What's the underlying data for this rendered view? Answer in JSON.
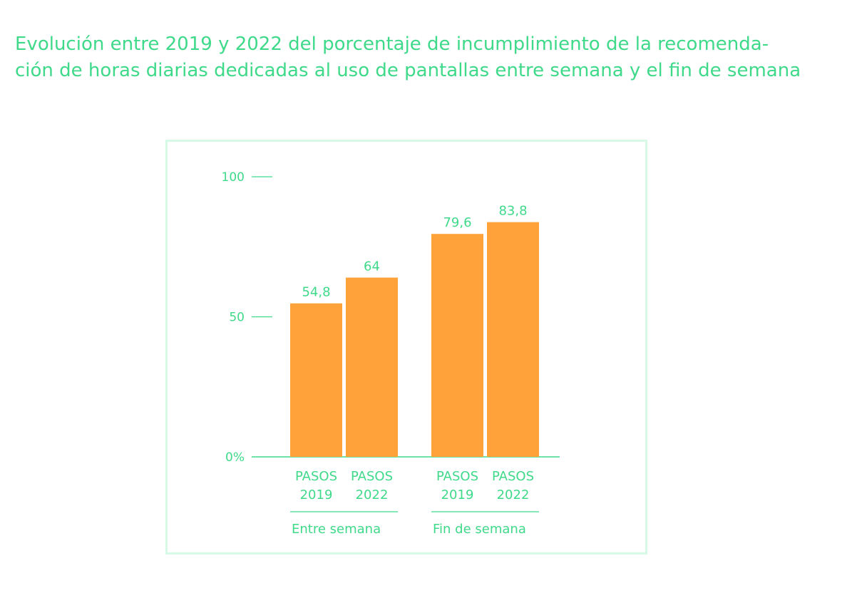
{
  "title_lines": [
    "Evolución entre 2019 y 2022 del porcentaje de incumplimiento de la recomenda-",
    "ción de horas diarias dedicadas al uso de pantallas entre semana y el fin de semana"
  ],
  "colors": {
    "accent": "#3fd98a",
    "bar": "#ffa23a",
    "frame": "#d6fae6"
  },
  "chart_data": {
    "type": "bar",
    "title": "Evolución entre 2019 y 2022 del porcentaje de incumplimiento de la recomendación de horas diarias dedicadas al uso de pantallas entre semana y el fin de semana",
    "xlabel": "",
    "ylabel": "",
    "ylim": [
      0,
      100
    ],
    "y_ticks": [
      {
        "value": 0,
        "label": "0%"
      },
      {
        "value": 50,
        "label": "50"
      },
      {
        "value": 100,
        "label": "100"
      }
    ],
    "grid": false,
    "legend": "none",
    "groups": [
      {
        "name": "Entre semana",
        "bars": [
          {
            "label": [
              "PASOS",
              "2019"
            ],
            "value": 54.8,
            "value_label": "54,8"
          },
          {
            "label": [
              "PASOS",
              "2022"
            ],
            "value": 64,
            "value_label": "64"
          }
        ]
      },
      {
        "name": "Fin de semana",
        "bars": [
          {
            "label": [
              "PASOS",
              "2019"
            ],
            "value": 79.6,
            "value_label": "79,6"
          },
          {
            "label": [
              "PASOS",
              "2022"
            ],
            "value": 83.8,
            "value_label": "83,8"
          }
        ]
      }
    ]
  }
}
